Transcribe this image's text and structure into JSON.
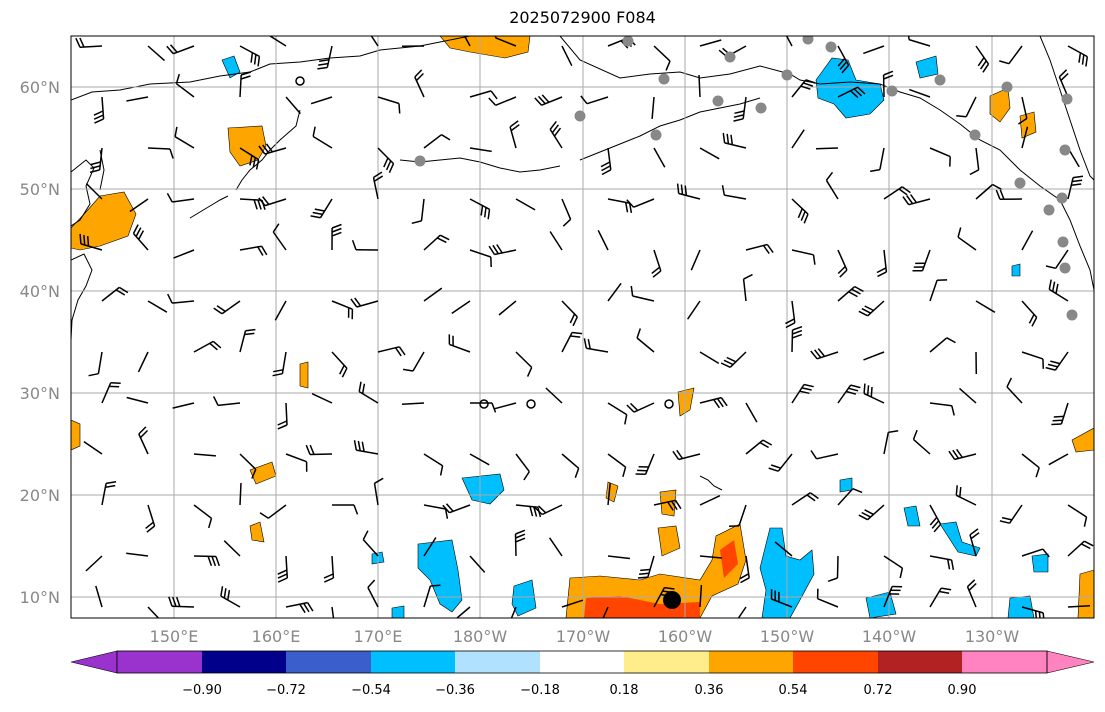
{
  "title": "2025072900 F084",
  "lat_labels": [
    "60°N",
    "50°N",
    "40°N",
    "30°N",
    "20°N",
    "10°N"
  ],
  "lon_labels": [
    "150°E",
    "160°E",
    "170°E",
    "180°W",
    "170°W",
    "160°W",
    "150°W",
    "140°W",
    "130°W"
  ],
  "colorbar": {
    "labels": [
      "−0.90",
      "−0.72",
      "−0.54",
      "−0.36",
      "−0.18",
      "0.18",
      "0.36",
      "0.54",
      "0.72",
      "0.90"
    ],
    "colors": [
      "#9a32cd",
      "#00008b",
      "#3a5fcd",
      "#00bfff",
      "#b0e2ff",
      "#ffffff",
      "#ffec8b",
      "#ffa500",
      "#ff4500",
      "#b22222",
      "#ff83c0"
    ]
  },
  "colors": {
    "coast": "#000000",
    "grid": "#aaaaaa",
    "station": "#888888",
    "barb": "#000000"
  }
}
